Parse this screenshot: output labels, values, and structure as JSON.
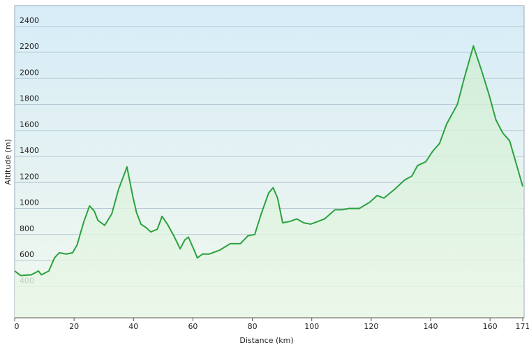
{
  "chart_data": {
    "type": "area",
    "x_label": "Distance  (km)",
    "y_label": "Altitude (m)",
    "x": [
      0,
      2,
      5.6,
      8,
      9,
      11.5,
      13.4,
      15,
      17.4,
      19.5,
      21,
      23.3,
      25.2,
      26.8,
      28,
      30.3,
      32.7,
      35,
      37,
      37.8,
      39.7,
      41,
      42.5,
      44.4,
      45.8,
      48,
      49.6,
      51.4,
      53.8,
      55.7,
      57.3,
      58.5,
      60.4,
      61.5,
      63.2,
      65.5,
      69,
      72.6,
      76,
      78.5,
      80.8,
      83,
      85.5,
      87,
      88.5,
      90.2,
      92.5,
      95,
      97.3,
      99.6,
      102,
      104.3,
      107.8,
      110.2,
      112.5,
      116,
      119.6,
      122,
      124.3,
      128,
      131.3,
      133.7,
      135.6,
      138.4,
      140.7,
      143,
      145.4,
      149,
      151.3,
      154.4,
      157.3,
      159.6,
      162,
      164.3,
      166.6,
      169,
      171
    ],
    "series": [
      {
        "name": "Altitude",
        "color": "#2ba13e",
        "values": [
          520,
          485,
          490,
          520,
          490,
          520,
          620,
          660,
          650,
          660,
          720,
          900,
          1020,
          980,
          910,
          870,
          960,
          1150,
          1270,
          1320,
          1100,
          970,
          880,
          850,
          820,
          840,
          940,
          880,
          780,
          690,
          760,
          780,
          680,
          620,
          650,
          650,
          680,
          730,
          730,
          790,
          800,
          960,
          1120,
          1160,
          1080,
          890,
          900,
          920,
          890,
          880,
          900,
          920,
          990,
          990,
          1000,
          1000,
          1050,
          1100,
          1080,
          1150,
          1220,
          1250,
          1330,
          1360,
          1440,
          1500,
          1650,
          1800,
          2000,
          2250,
          2050,
          1880,
          1680,
          1580,
          1520,
          1330,
          1170
        ]
      }
    ],
    "xlim": [
      0,
      171
    ],
    "ylim": [
      160,
      2560
    ],
    "xticks": [
      0,
      20,
      40,
      60,
      80,
      100,
      120,
      140,
      160,
      171
    ],
    "yticks": [
      400,
      600,
      800,
      1000,
      1200,
      1400,
      1600,
      1800,
      2000,
      2200,
      2400
    ],
    "grid": true
  }
}
